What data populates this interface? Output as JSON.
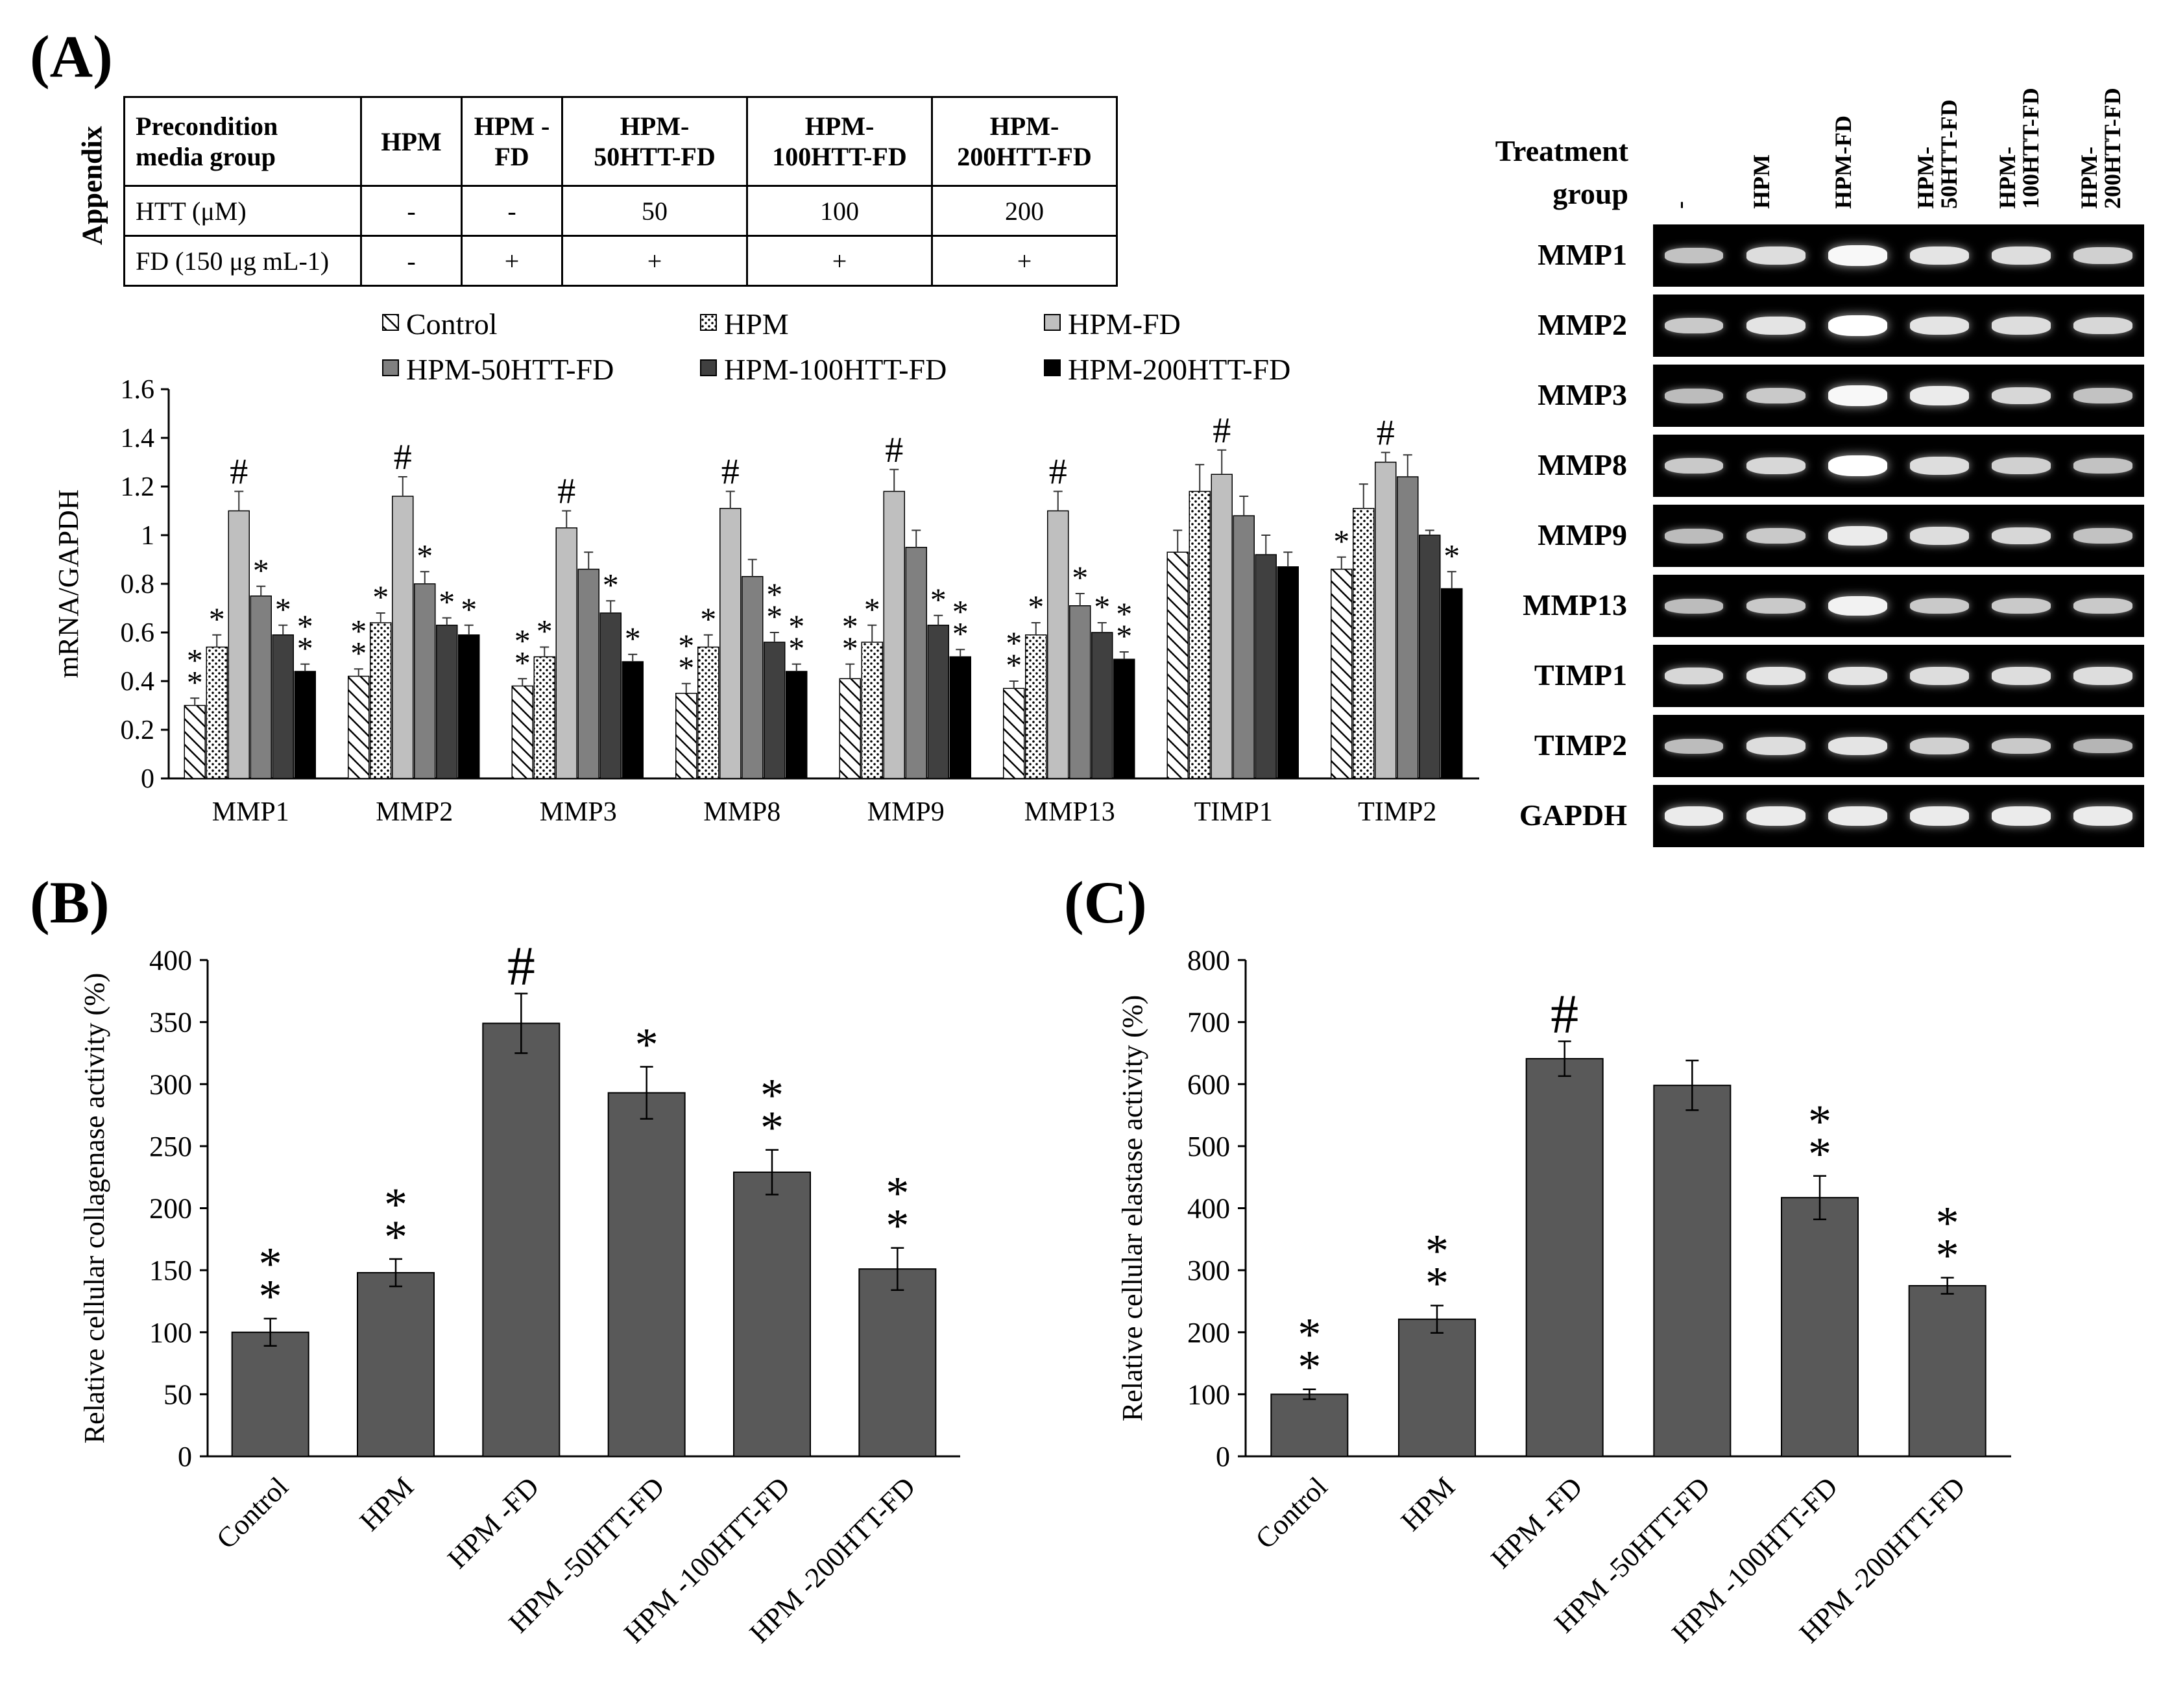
{
  "panels": {
    "a": "(A)",
    "b": "(B)",
    "c": "(C)"
  },
  "appendix": {
    "title": "Appendix",
    "headers": [
      "Precondition media group",
      "HPM",
      "HPM -FD",
      "HPM- 50HTT-FD",
      "HPM- 100HTT-FD",
      "HPM- 200HTT-FD"
    ],
    "rows": [
      {
        "label": "HTT (μM)",
        "cells": [
          "-",
          "-",
          "50",
          "100",
          "200"
        ]
      },
      {
        "label": "FD (150 μg mL-1)",
        "cells": [
          "-",
          "+",
          "+",
          "+",
          "+"
        ]
      }
    ]
  },
  "gel": {
    "header": "Treatment group",
    "lanes": [
      "-",
      "HPM",
      "HPM-FD",
      "HPM- 50HTT-FD",
      "HPM- 100HTT-FD",
      "HPM- 200HTT-FD"
    ],
    "rows": [
      "MMP1",
      "MMP2",
      "MMP3",
      "MMP8",
      "MMP9",
      "MMP13",
      "TIMP1",
      "TIMP2",
      "GAPDH"
    ],
    "band_intensity": [
      [
        0.55,
        0.75,
        0.95,
        0.8,
        0.75,
        0.65
      ],
      [
        0.6,
        0.8,
        1.0,
        0.8,
        0.75,
        0.7
      ],
      [
        0.5,
        0.6,
        0.95,
        0.85,
        0.7,
        0.55
      ],
      [
        0.6,
        0.7,
        1.0,
        0.75,
        0.65,
        0.55
      ],
      [
        0.5,
        0.6,
        0.85,
        0.75,
        0.7,
        0.55
      ],
      [
        0.5,
        0.6,
        0.9,
        0.6,
        0.6,
        0.6
      ],
      [
        0.7,
        0.8,
        0.8,
        0.75,
        0.75,
        0.75
      ],
      [
        0.5,
        0.75,
        0.8,
        0.65,
        0.6,
        0.45
      ],
      [
        0.85,
        0.85,
        0.85,
        0.85,
        0.85,
        0.85
      ]
    ]
  },
  "colors": {
    "bar": "#595959",
    "hpmfd": "#bfbfbf",
    "mmp50": "#808080",
    "mmp100": "#404040",
    "mmp200": "#000000"
  },
  "chart_data": [
    {
      "type": "bar",
      "id": "A",
      "ylabel": "mRNA/GAPDH",
      "ylim": [
        0,
        1.6
      ],
      "yticks": [
        "0",
        "0.2",
        "0.4",
        "0.6",
        "0.8",
        "1",
        "1.2",
        "1.4",
        "1.6"
      ],
      "categories": [
        "MMP1",
        "MMP2",
        "MMP3",
        "MMP8",
        "MMP9",
        "MMP13",
        "TIMP1",
        "TIMP2"
      ],
      "series": [
        {
          "name": "Control",
          "values": [
            0.3,
            0.42,
            0.38,
            0.35,
            0.41,
            0.37,
            0.93,
            0.86
          ],
          "errors": [
            0.03,
            0.03,
            0.03,
            0.04,
            0.06,
            0.03,
            0.09,
            0.05
          ],
          "marks": [
            "**",
            "**",
            "**",
            "**",
            "**",
            "**",
            "",
            "*"
          ]
        },
        {
          "name": "HPM",
          "values": [
            0.54,
            0.64,
            0.5,
            0.54,
            0.56,
            0.59,
            1.18,
            1.11
          ],
          "errors": [
            0.05,
            0.04,
            0.04,
            0.05,
            0.07,
            0.05,
            0.11,
            0.1
          ],
          "marks": [
            "*",
            "*",
            "*",
            "*",
            "*",
            "*",
            "",
            ""
          ]
        },
        {
          "name": "HPM-FD",
          "values": [
            1.1,
            1.16,
            1.03,
            1.11,
            1.18,
            1.1,
            1.25,
            1.3
          ],
          "errors": [
            0.08,
            0.08,
            0.07,
            0.07,
            0.09,
            0.08,
            0.1,
            0.04
          ],
          "marks": [
            "#",
            "#",
            "#",
            "#",
            "#",
            "#",
            "#",
            "#"
          ]
        },
        {
          "name": "HPM-50HTT-FD",
          "values": [
            0.75,
            0.8,
            0.86,
            0.83,
            0.95,
            0.71,
            1.08,
            1.24
          ],
          "errors": [
            0.04,
            0.05,
            0.07,
            0.07,
            0.07,
            0.05,
            0.08,
            0.09
          ],
          "marks": [
            "*",
            "*",
            "",
            "",
            "",
            "*",
            "",
            ""
          ]
        },
        {
          "name": "HPM-100HTT-FD",
          "values": [
            0.59,
            0.63,
            0.68,
            0.56,
            0.63,
            0.6,
            0.92,
            1.0
          ],
          "errors": [
            0.04,
            0.03,
            0.05,
            0.04,
            0.04,
            0.04,
            0.08,
            0.02
          ],
          "marks": [
            "*",
            "*",
            "*",
            "**",
            "*",
            "*",
            "",
            ""
          ]
        },
        {
          "name": "HPM-200HTT-FD",
          "values": [
            0.44,
            0.59,
            0.48,
            0.44,
            0.5,
            0.49,
            0.87,
            0.78
          ],
          "errors": [
            0.03,
            0.04,
            0.03,
            0.03,
            0.03,
            0.03,
            0.06,
            0.07
          ],
          "marks": [
            "**",
            "*",
            "*",
            "**",
            "**",
            "**",
            "",
            "*"
          ]
        }
      ]
    },
    {
      "type": "bar",
      "id": "B",
      "ylabel": "Relative cellular collagenase activity (%)",
      "ylim": [
        0,
        400
      ],
      "yticks": [
        "0",
        "50",
        "100",
        "150",
        "200",
        "250",
        "300",
        "350",
        "400"
      ],
      "categories": [
        "Control",
        "HPM",
        "HPM -FD",
        "HPM -50HTT-FD",
        "HPM -100HTT-FD",
        "HPM -200HTT-FD"
      ],
      "values": [
        100,
        148,
        349,
        293,
        229,
        151
      ],
      "errors": [
        11,
        11,
        24,
        21,
        18,
        17
      ],
      "marks": [
        "**",
        "**",
        "#",
        "*",
        "**",
        "**"
      ]
    },
    {
      "type": "bar",
      "id": "C",
      "ylabel": "Relative cellular elastase activity (%)",
      "ylim": [
        0,
        800
      ],
      "yticks": [
        "0",
        "100",
        "200",
        "300",
        "400",
        "500",
        "600",
        "700",
        "800"
      ],
      "categories": [
        "Control",
        "HPM",
        "HPM -FD",
        "HPM -50HTT-FD",
        "HPM -100HTT-FD",
        "HPM -200HTT-FD"
      ],
      "values": [
        100,
        221,
        641,
        598,
        417,
        275
      ],
      "errors": [
        8,
        22,
        28,
        40,
        35,
        13
      ],
      "marks": [
        "**",
        "**",
        "#",
        "",
        "**",
        "**"
      ]
    }
  ]
}
